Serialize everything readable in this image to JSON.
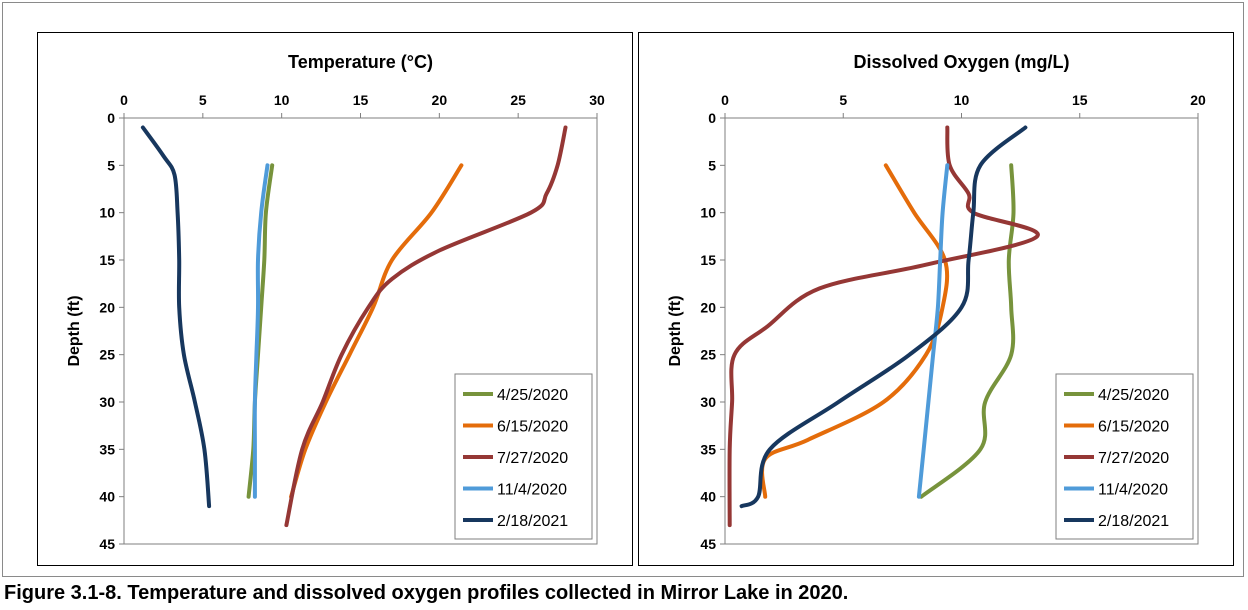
{
  "caption": "Figure 3.1-8.  Temperature and dissolved oxygen profiles collected in Mirror Lake in 2020.",
  "colors": {
    "4/25/2020": "#77933c",
    "6/15/2020": "#e46c0a",
    "7/27/2020": "#953735",
    "11/4/2020": "#4f9bd9",
    "2/18/2021": "#17375e"
  },
  "chart_data": [
    {
      "type": "line",
      "title": "Temperature (°C)",
      "xlabel": "",
      "ylabel": "Depth (ft)",
      "x_axis_position": "top",
      "y_inverted": true,
      "xlim": [
        0,
        30
      ],
      "ylim": [
        0,
        45
      ],
      "x_ticks": [
        0,
        5,
        10,
        15,
        20,
        25,
        30
      ],
      "y_ticks": [
        0,
        5,
        10,
        15,
        20,
        25,
        30,
        35,
        40,
        45
      ],
      "grid": false,
      "legend_position": "bottom-right",
      "series": [
        {
          "name": "4/25/2020",
          "points": [
            [
              9.4,
              5
            ],
            [
              9.0,
              10
            ],
            [
              8.9,
              15
            ],
            [
              8.7,
              20
            ],
            [
              8.5,
              25
            ],
            [
              8.3,
              30
            ],
            [
              8.2,
              35
            ],
            [
              7.9,
              40
            ]
          ]
        },
        {
          "name": "6/15/2020",
          "points": [
            [
              21.4,
              5
            ],
            [
              19.5,
              10
            ],
            [
              17.0,
              15
            ],
            [
              15.8,
              20
            ],
            [
              14.3,
              25
            ],
            [
              12.8,
              30
            ],
            [
              11.5,
              35
            ],
            [
              10.6,
              40
            ]
          ]
        },
        {
          "name": "7/27/2020",
          "points": [
            [
              28.0,
              1
            ],
            [
              27.5,
              5
            ],
            [
              26.8,
              8
            ],
            [
              25.8,
              10
            ],
            [
              20.0,
              14
            ],
            [
              17.0,
              17
            ],
            [
              15.5,
              20
            ],
            [
              13.8,
              25
            ],
            [
              12.6,
              30
            ],
            [
              11.3,
              35
            ],
            [
              10.3,
              43
            ]
          ]
        },
        {
          "name": "11/4/2020",
          "points": [
            [
              9.1,
              5
            ],
            [
              8.7,
              10
            ],
            [
              8.5,
              15
            ],
            [
              8.5,
              20
            ],
            [
              8.4,
              25
            ],
            [
              8.3,
              30
            ],
            [
              8.3,
              35
            ],
            [
              8.3,
              40
            ]
          ]
        },
        {
          "name": "2/18/2021",
          "points": [
            [
              1.2,
              1
            ],
            [
              2.5,
              4
            ],
            [
              3.2,
              6
            ],
            [
              3.4,
              10
            ],
            [
              3.5,
              15
            ],
            [
              3.5,
              20
            ],
            [
              3.8,
              25
            ],
            [
              4.5,
              30
            ],
            [
              5.1,
              35
            ],
            [
              5.4,
              41
            ]
          ]
        }
      ]
    },
    {
      "type": "line",
      "title": "Dissolved Oxygen (mg/L)",
      "xlabel": "",
      "ylabel": "Depth (ft)",
      "x_axis_position": "top",
      "y_inverted": true,
      "xlim": [
        0,
        20
      ],
      "ylim": [
        0,
        45
      ],
      "x_ticks": [
        0,
        5,
        10,
        15,
        20
      ],
      "y_ticks": [
        0,
        5,
        10,
        15,
        20,
        25,
        30,
        35,
        40,
        45
      ],
      "grid": false,
      "legend_position": "bottom-right",
      "series": [
        {
          "name": "4/25/2020",
          "points": [
            [
              12.1,
              5
            ],
            [
              12.2,
              10
            ],
            [
              12.0,
              15
            ],
            [
              12.1,
              20
            ],
            [
              12.1,
              25
            ],
            [
              11.0,
              30
            ],
            [
              10.8,
              35
            ],
            [
              8.3,
              40
            ]
          ]
        },
        {
          "name": "6/15/2020",
          "points": [
            [
              6.8,
              5
            ],
            [
              8.0,
              10
            ],
            [
              9.3,
              15
            ],
            [
              9.2,
              20
            ],
            [
              8.5,
              25
            ],
            [
              6.7,
              30
            ],
            [
              3.5,
              34
            ],
            [
              1.7,
              36
            ],
            [
              1.7,
              40
            ]
          ]
        },
        {
          "name": "7/27/2020",
          "points": [
            [
              9.4,
              1
            ],
            [
              9.5,
              5
            ],
            [
              10.3,
              8
            ],
            [
              10.5,
              10
            ],
            [
              13.2,
              12.5
            ],
            [
              8.5,
              15.5
            ],
            [
              4.0,
              18
            ],
            [
              1.8,
              22
            ],
            [
              0.4,
              25
            ],
            [
              0.3,
              30
            ],
            [
              0.2,
              35
            ],
            [
              0.2,
              43
            ]
          ]
        },
        {
          "name": "11/4/2020",
          "points": [
            [
              9.4,
              5
            ],
            [
              9.2,
              10
            ],
            [
              9.1,
              15
            ],
            [
              9.0,
              20
            ],
            [
              8.8,
              25
            ],
            [
              8.6,
              30
            ],
            [
              8.4,
              35
            ],
            [
              8.2,
              40
            ]
          ]
        },
        {
          "name": "2/18/2021",
          "points": [
            [
              12.7,
              1
            ],
            [
              10.8,
              5
            ],
            [
              10.5,
              10
            ],
            [
              10.3,
              15
            ],
            [
              10.0,
              20
            ],
            [
              7.8,
              25
            ],
            [
              4.8,
              30
            ],
            [
              1.9,
              35
            ],
            [
              1.4,
              40
            ],
            [
              0.7,
              41
            ]
          ]
        }
      ]
    }
  ]
}
